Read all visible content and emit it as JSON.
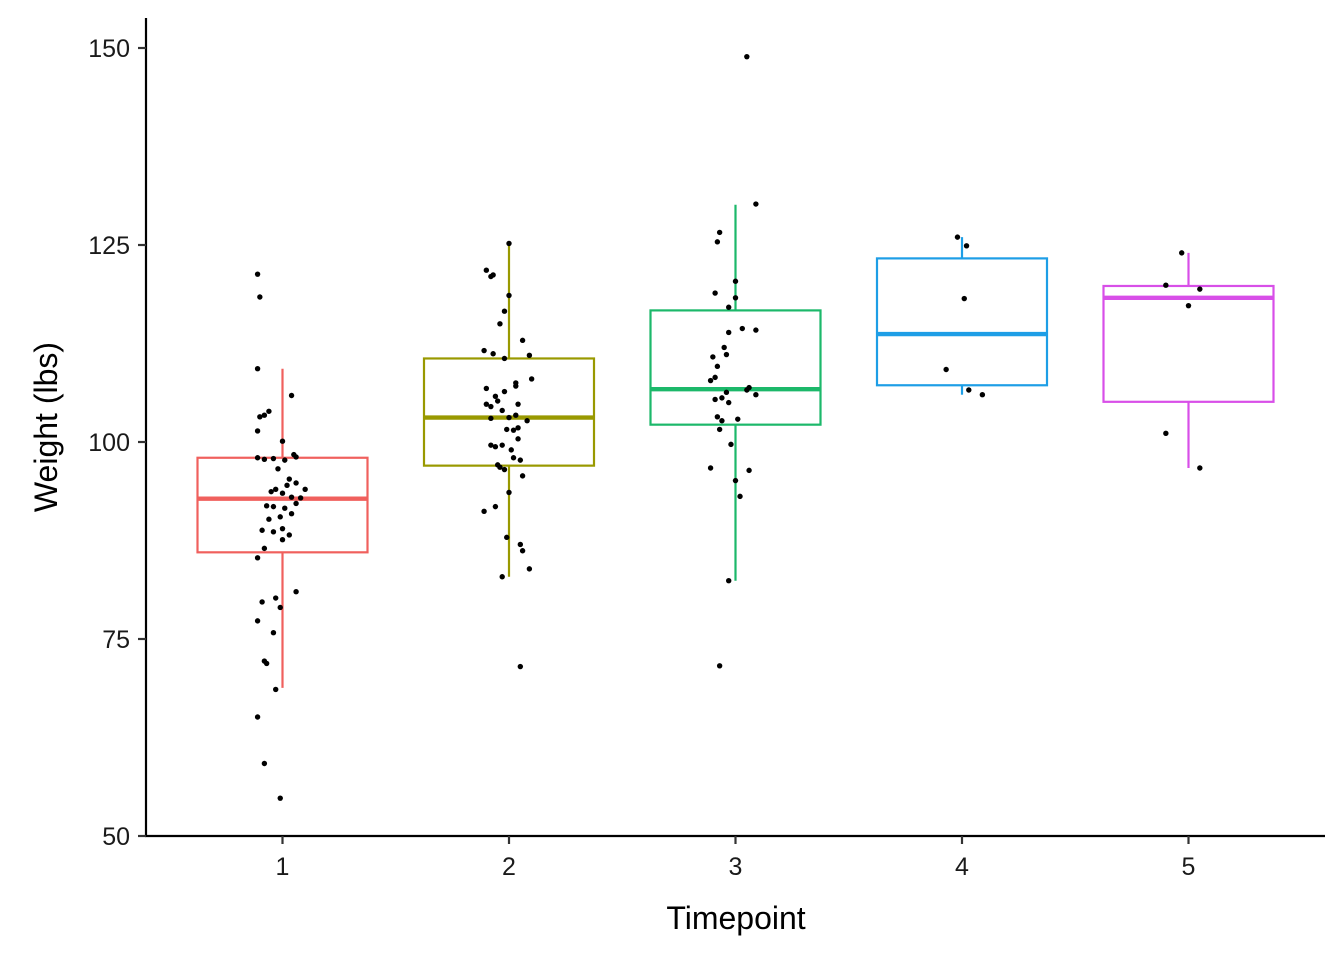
{
  "chart_data": {
    "type": "box",
    "xlabel": "Timepoint",
    "ylabel": "Weight (lbs)",
    "ylim": [
      50,
      154
    ],
    "yticks": [
      50,
      75,
      100,
      125,
      150
    ],
    "grid": false,
    "legend": "none",
    "categories": [
      "1",
      "2",
      "3",
      "4",
      "5"
    ],
    "colors": [
      "#f0605d",
      "#999900",
      "#1cb86a",
      "#1e9ee6",
      "#d84fe8"
    ],
    "boxes": [
      {
        "category": "1",
        "whisker_low": 68.8,
        "q1": 86.0,
        "median": 92.8,
        "q3": 98.0,
        "whisker_high": 109.3
      },
      {
        "category": "2",
        "whisker_low": 82.9,
        "q1": 97.0,
        "median": 103.1,
        "q3": 110.6,
        "whisker_high": 125.0
      },
      {
        "category": "3",
        "whisker_low": 82.4,
        "q1": 102.2,
        "median": 106.7,
        "q3": 116.7,
        "whisker_high": 130.1
      },
      {
        "category": "4",
        "whisker_low": 106.0,
        "q1": 107.2,
        "median": 113.7,
        "q3": 123.3,
        "whisker_high": 126.0
      },
      {
        "category": "5",
        "whisker_low": 96.7,
        "q1": 105.1,
        "median": 118.3,
        "q3": 119.8,
        "whisker_high": 124.0
      }
    ],
    "points": [
      {
        "x": 0.89,
        "y": 121.3
      },
      {
        "x": 0.9,
        "y": 118.4
      },
      {
        "x": 0.89,
        "y": 109.3
      },
      {
        "x": 1.04,
        "y": 105.9
      },
      {
        "x": 0.94,
        "y": 103.9
      },
      {
        "x": 0.9,
        "y": 103.2
      },
      {
        "x": 0.92,
        "y": 103.4
      },
      {
        "x": 0.89,
        "y": 101.4
      },
      {
        "x": 1.0,
        "y": 100.1
      },
      {
        "x": 0.89,
        "y": 98.0
      },
      {
        "x": 0.92,
        "y": 97.8
      },
      {
        "x": 0.96,
        "y": 97.9
      },
      {
        "x": 1.01,
        "y": 97.7
      },
      {
        "x": 1.05,
        "y": 98.4
      },
      {
        "x": 1.06,
        "y": 98.1
      },
      {
        "x": 0.98,
        "y": 96.6
      },
      {
        "x": 1.03,
        "y": 95.3
      },
      {
        "x": 1.06,
        "y": 94.8
      },
      {
        "x": 1.02,
        "y": 94.5
      },
      {
        "x": 0.97,
        "y": 94.0
      },
      {
        "x": 1.1,
        "y": 94.0
      },
      {
        "x": 0.95,
        "y": 93.7
      },
      {
        "x": 1.0,
        "y": 93.5
      },
      {
        "x": 1.04,
        "y": 93.0
      },
      {
        "x": 1.08,
        "y": 92.9
      },
      {
        "x": 1.06,
        "y": 92.2
      },
      {
        "x": 0.93,
        "y": 91.9
      },
      {
        "x": 0.96,
        "y": 91.8
      },
      {
        "x": 1.01,
        "y": 91.6
      },
      {
        "x": 1.04,
        "y": 90.9
      },
      {
        "x": 0.99,
        "y": 90.5
      },
      {
        "x": 0.94,
        "y": 90.2
      },
      {
        "x": 0.91,
        "y": 88.8
      },
      {
        "x": 0.96,
        "y": 88.6
      },
      {
        "x": 1.0,
        "y": 89.0
      },
      {
        "x": 1.03,
        "y": 88.2
      },
      {
        "x": 1.0,
        "y": 87.6
      },
      {
        "x": 0.92,
        "y": 86.5
      },
      {
        "x": 0.89,
        "y": 85.3
      },
      {
        "x": 1.06,
        "y": 81.0
      },
      {
        "x": 0.97,
        "y": 80.2
      },
      {
        "x": 0.91,
        "y": 79.7
      },
      {
        "x": 0.99,
        "y": 79.0
      },
      {
        "x": 0.89,
        "y": 77.3
      },
      {
        "x": 0.96,
        "y": 75.8
      },
      {
        "x": 0.92,
        "y": 72.2
      },
      {
        "x": 0.93,
        "y": 71.9
      },
      {
        "x": 0.97,
        "y": 68.6
      },
      {
        "x": 0.89,
        "y": 65.1
      },
      {
        "x": 0.92,
        "y": 59.2
      },
      {
        "x": 0.99,
        "y": 54.8
      },
      {
        "x": 1.9,
        "y": 121.8
      },
      {
        "x": 1.93,
        "y": 121.2
      },
      {
        "x": 1.92,
        "y": 121.0
      },
      {
        "x": 2.0,
        "y": 125.2
      },
      {
        "x": 2.0,
        "y": 118.6
      },
      {
        "x": 1.98,
        "y": 116.6
      },
      {
        "x": 1.96,
        "y": 115.0
      },
      {
        "x": 2.06,
        "y": 112.9
      },
      {
        "x": 1.89,
        "y": 111.6
      },
      {
        "x": 1.93,
        "y": 111.2
      },
      {
        "x": 2.09,
        "y": 111.0
      },
      {
        "x": 1.98,
        "y": 110.6
      },
      {
        "x": 2.1,
        "y": 108.0
      },
      {
        "x": 2.03,
        "y": 107.5
      },
      {
        "x": 2.03,
        "y": 107.1
      },
      {
        "x": 1.9,
        "y": 106.8
      },
      {
        "x": 1.98,
        "y": 106.4
      },
      {
        "x": 1.94,
        "y": 105.8
      },
      {
        "x": 1.95,
        "y": 105.2
      },
      {
        "x": 1.9,
        "y": 104.8
      },
      {
        "x": 1.92,
        "y": 104.5
      },
      {
        "x": 2.04,
        "y": 104.8
      },
      {
        "x": 1.97,
        "y": 104.0
      },
      {
        "x": 2.0,
        "y": 103.1
      },
      {
        "x": 1.92,
        "y": 103.0
      },
      {
        "x": 2.03,
        "y": 103.4
      },
      {
        "x": 2.08,
        "y": 102.7
      },
      {
        "x": 2.04,
        "y": 101.8
      },
      {
        "x": 1.99,
        "y": 101.6
      },
      {
        "x": 2.02,
        "y": 101.5
      },
      {
        "x": 2.04,
        "y": 100.4
      },
      {
        "x": 1.92,
        "y": 99.6
      },
      {
        "x": 1.94,
        "y": 99.4
      },
      {
        "x": 1.97,
        "y": 99.6
      },
      {
        "x": 2.01,
        "y": 99.0
      },
      {
        "x": 2.02,
        "y": 98.0
      },
      {
        "x": 2.05,
        "y": 97.7
      },
      {
        "x": 1.95,
        "y": 97.1
      },
      {
        "x": 1.96,
        "y": 96.8
      },
      {
        "x": 1.98,
        "y": 96.5
      },
      {
        "x": 2.06,
        "y": 95.7
      },
      {
        "x": 2.0,
        "y": 93.6
      },
      {
        "x": 1.94,
        "y": 91.8
      },
      {
        "x": 1.89,
        "y": 91.2
      },
      {
        "x": 1.99,
        "y": 87.9
      },
      {
        "x": 2.05,
        "y": 87.0
      },
      {
        "x": 2.06,
        "y": 86.2
      },
      {
        "x": 2.09,
        "y": 83.9
      },
      {
        "x": 1.97,
        "y": 82.9
      },
      {
        "x": 2.05,
        "y": 71.5
      },
      {
        "x": 2.93,
        "y": 126.6
      },
      {
        "x": 2.92,
        "y": 125.4
      },
      {
        "x": 3.09,
        "y": 130.2
      },
      {
        "x": 3.05,
        "y": 148.9
      },
      {
        "x": 3.0,
        "y": 120.4
      },
      {
        "x": 2.91,
        "y": 118.9
      },
      {
        "x": 3.0,
        "y": 118.3
      },
      {
        "x": 2.97,
        "y": 117.1
      },
      {
        "x": 3.03,
        "y": 114.4
      },
      {
        "x": 3.09,
        "y": 114.2
      },
      {
        "x": 2.97,
        "y": 113.9
      },
      {
        "x": 2.95,
        "y": 112.0
      },
      {
        "x": 2.96,
        "y": 111.1
      },
      {
        "x": 2.9,
        "y": 110.8
      },
      {
        "x": 2.92,
        "y": 109.6
      },
      {
        "x": 2.91,
        "y": 108.2
      },
      {
        "x": 2.89,
        "y": 107.8
      },
      {
        "x": 3.06,
        "y": 106.9
      },
      {
        "x": 3.05,
        "y": 106.6
      },
      {
        "x": 2.96,
        "y": 106.3
      },
      {
        "x": 3.09,
        "y": 106.0
      },
      {
        "x": 2.94,
        "y": 105.6
      },
      {
        "x": 2.91,
        "y": 105.4
      },
      {
        "x": 2.97,
        "y": 105.0
      },
      {
        "x": 2.92,
        "y": 103.2
      },
      {
        "x": 2.94,
        "y": 102.7
      },
      {
        "x": 3.01,
        "y": 102.9
      },
      {
        "x": 2.93,
        "y": 101.6
      },
      {
        "x": 2.98,
        "y": 99.7
      },
      {
        "x": 2.89,
        "y": 96.7
      },
      {
        "x": 3.06,
        "y": 96.4
      },
      {
        "x": 3.0,
        "y": 95.1
      },
      {
        "x": 3.02,
        "y": 93.1
      },
      {
        "x": 2.97,
        "y": 82.4
      },
      {
        "x": 2.93,
        "y": 71.6
      },
      {
        "x": 3.98,
        "y": 126.0
      },
      {
        "x": 4.02,
        "y": 124.9
      },
      {
        "x": 4.01,
        "y": 118.2
      },
      {
        "x": 3.93,
        "y": 109.2
      },
      {
        "x": 4.03,
        "y": 106.6
      },
      {
        "x": 4.09,
        "y": 106.0
      },
      {
        "x": 4.97,
        "y": 124.0
      },
      {
        "x": 4.9,
        "y": 119.9
      },
      {
        "x": 5.05,
        "y": 119.4
      },
      {
        "x": 5.0,
        "y": 117.3
      },
      {
        "x": 4.9,
        "y": 101.1
      },
      {
        "x": 5.05,
        "y": 96.7
      }
    ]
  }
}
